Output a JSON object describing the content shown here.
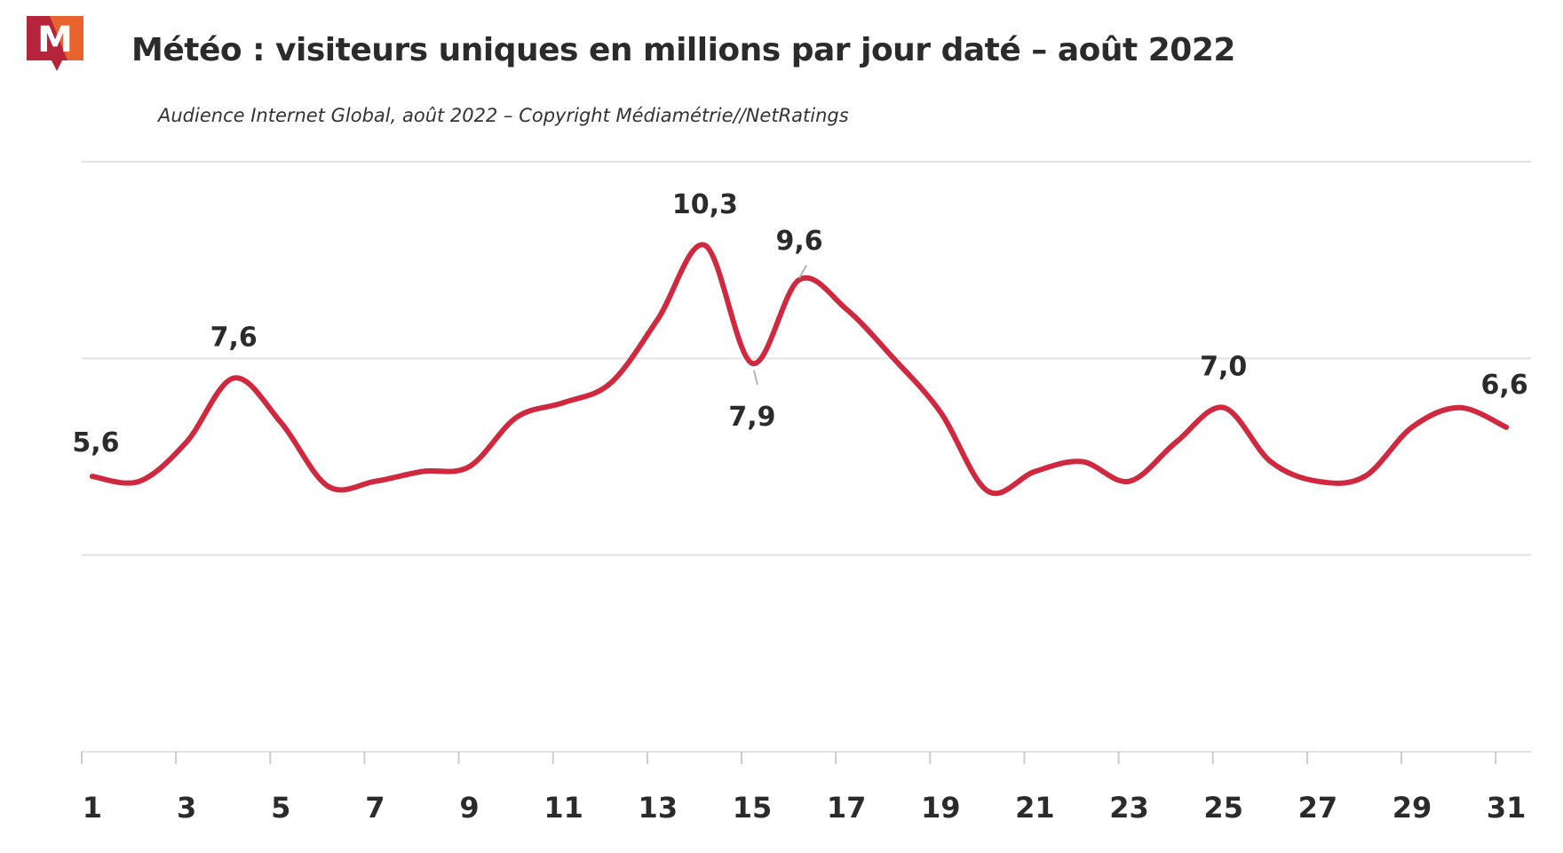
{
  "header": {
    "title": "Météo : visiteurs uniques en millions par jour daté – août 2022",
    "subtitle": "Audience Internet Global, août 2022 – Copyright Médiamétrie//NetRatings",
    "logo_letter": "M"
  },
  "colors": {
    "line": "#d0283e",
    "grid": "#e2e2e2",
    "logo_dark": "#b5243a",
    "logo_orange": "#ec6b2d",
    "text": "#2b2b2b"
  },
  "chart_data": {
    "type": "line",
    "title": "Météo : visiteurs uniques en millions par jour daté – août 2022",
    "subtitle": "Audience Internet Global, août 2022 – Copyright Médiamétrie//NetRatings",
    "xlabel": "",
    "ylabel": "",
    "x": [
      1,
      2,
      3,
      4,
      5,
      6,
      7,
      8,
      9,
      10,
      11,
      12,
      13,
      14,
      15,
      16,
      17,
      18,
      19,
      20,
      21,
      22,
      23,
      24,
      25,
      26,
      27,
      28,
      29,
      30,
      31
    ],
    "x_tick_labels": [
      "1",
      "3",
      "5",
      "7",
      "9",
      "11",
      "13",
      "15",
      "17",
      "19",
      "21",
      "23",
      "25",
      "27",
      "29",
      "31"
    ],
    "series": [
      {
        "name": "Météo",
        "values": [
          5.6,
          5.5,
          6.3,
          7.6,
          6.7,
          5.4,
          5.5,
          5.7,
          5.8,
          6.8,
          7.1,
          7.5,
          8.8,
          10.3,
          7.9,
          9.6,
          9.0,
          8.0,
          6.9,
          5.3,
          5.7,
          5.9,
          5.5,
          6.3,
          7.0,
          5.9,
          5.5,
          5.6,
          6.6,
          7.0,
          6.6
        ]
      }
    ],
    "ylim": [
      0,
      12
    ],
    "grid": true,
    "data_labels": [
      {
        "text": "5,6",
        "day": 1
      },
      {
        "text": "7,6",
        "day": 4
      },
      {
        "text": "10,3",
        "day": 14
      },
      {
        "text": "7,9",
        "day": 15
      },
      {
        "text": "9,6",
        "day": 16
      },
      {
        "text": "7,0",
        "day": 25
      },
      {
        "text": "6,6",
        "day": 31
      }
    ]
  }
}
